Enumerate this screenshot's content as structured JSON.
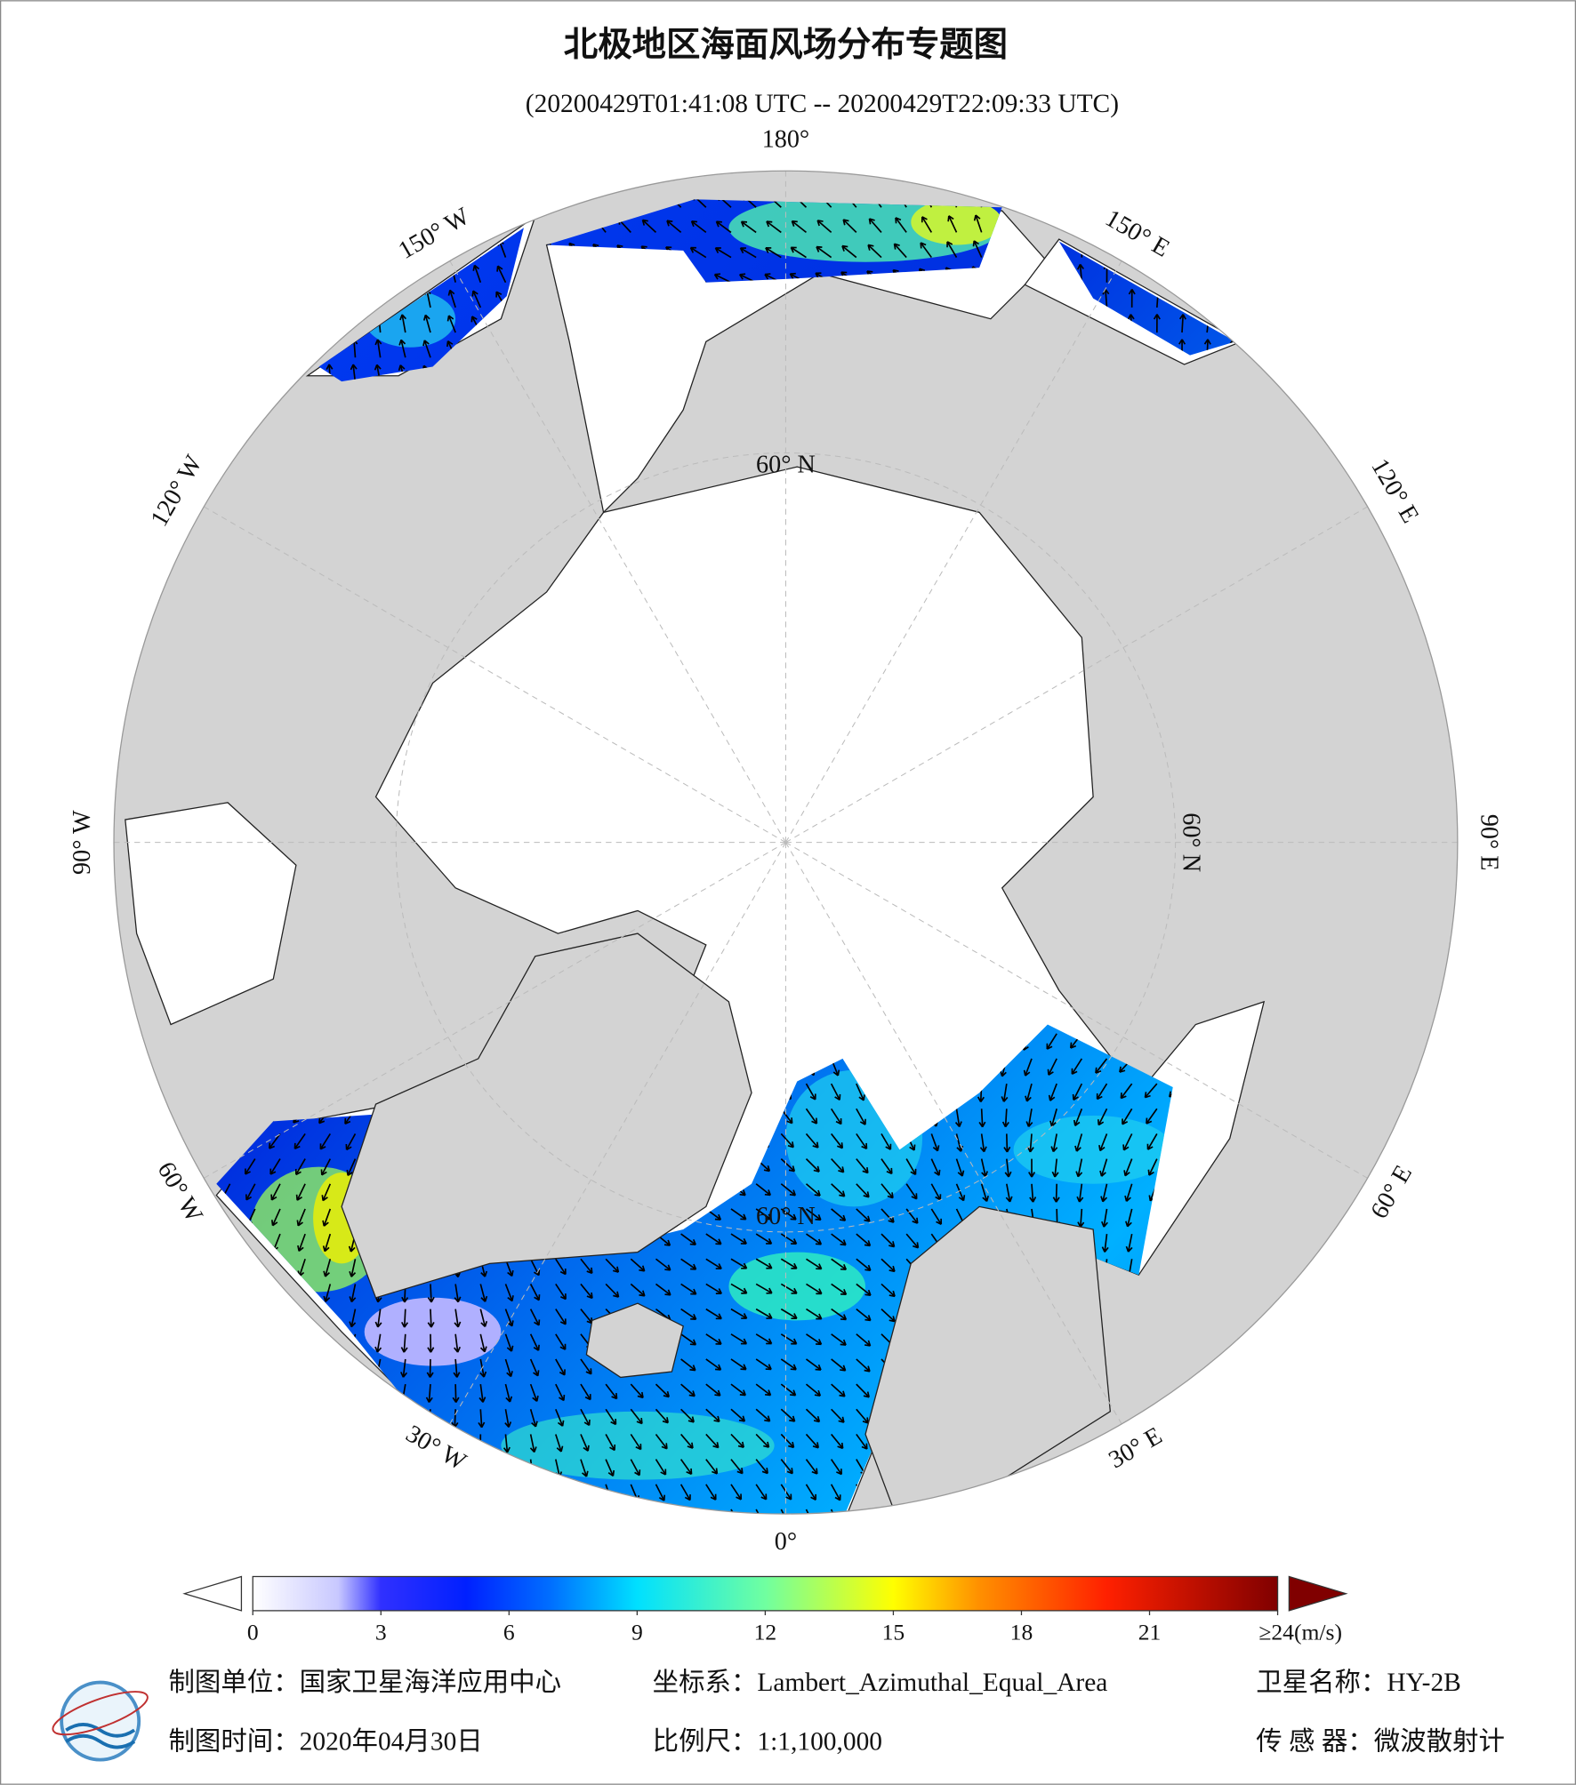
{
  "header": {
    "title": "北极地区海面风场分布专题图",
    "subtitle": "(20200429T01:41:08 UTC -- 20200429T22:09:33 UTC)"
  },
  "map": {
    "longitude_ticks": [
      {
        "value": 180,
        "label": "180°"
      },
      {
        "value": 150,
        "label": "150° E"
      },
      {
        "value": 120,
        "label": "120° E"
      },
      {
        "value": 90,
        "label": "90° E"
      },
      {
        "value": 60,
        "label": "60° E"
      },
      {
        "value": 30,
        "label": "30° E"
      },
      {
        "value": 0,
        "label": "0°"
      },
      {
        "value": -30,
        "label": "30° W"
      },
      {
        "value": -60,
        "label": "60° W"
      },
      {
        "value": -90,
        "label": "90° W"
      },
      {
        "value": -120,
        "label": "120° W"
      },
      {
        "value": -150,
        "label": "150° W"
      }
    ],
    "latitude_ticks": [
      {
        "value": 60,
        "label": "60° N"
      }
    ]
  },
  "colorbar": {
    "lim": [
      0,
      24
    ],
    "ticks": [
      0,
      3,
      6,
      9,
      12,
      15,
      18,
      21,
      {
        "value": 24,
        "label": "≥24(m/s)"
      }
    ],
    "stops": [
      {
        "value": 0,
        "color": "#ffffff"
      },
      {
        "value": 2,
        "color": "#c8c8ff"
      },
      {
        "value": 3,
        "color": "#3030ff"
      },
      {
        "value": 5,
        "color": "#0020ff"
      },
      {
        "value": 7,
        "color": "#0070ff"
      },
      {
        "value": 9,
        "color": "#00e0ff"
      },
      {
        "value": 12,
        "color": "#70ffa0"
      },
      {
        "value": 15,
        "color": "#ffff00"
      },
      {
        "value": 17,
        "color": "#ff9000"
      },
      {
        "value": 20,
        "color": "#ff2000"
      },
      {
        "value": 24,
        "color": "#800000"
      }
    ]
  },
  "footer": {
    "unit": "制图单位：国家卫星海洋应用中心",
    "date": "制图时间：2020年04月30日",
    "projection": "坐标系：Lambert_Azimuthal_Equal_Area",
    "scale": "比例尺：1:1,100,000",
    "satellite": "卫星名称：HY-2B",
    "sensor": "传 感 器：微波散射计"
  }
}
